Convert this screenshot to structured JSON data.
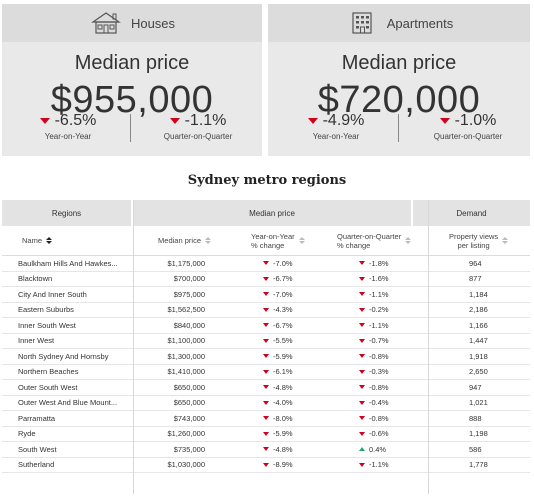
{
  "cards": [
    {
      "title": "Houses",
      "icon": "house-icon",
      "median_label": "Median price",
      "median_value": "$955,000",
      "yoy_value": "-6.5%",
      "yoy_label": "Year-on-Year",
      "qoq_value": "-1.1%",
      "qoq_label": "Quarter-on-Quarter"
    },
    {
      "title": "Apartments",
      "icon": "apartment-building-icon",
      "median_label": "Median price",
      "median_value": "$720,000",
      "yoy_value": "-4.9%",
      "yoy_label": "Year-on-Year",
      "qoq_value": "-1.0%",
      "qoq_label": "Quarter-on-Quarter"
    }
  ],
  "section_title": "Sydney metro regions",
  "table": {
    "groups": {
      "regions": "Regions",
      "median": "Median price",
      "demand": "Demand"
    },
    "headers": {
      "name": "Name",
      "price": "Median price",
      "yoy_line1": "Year-on-Year",
      "yoy_line2": "% change",
      "qoq_line1": "Quarter-on-Quarter",
      "qoq_line2": "% change",
      "demand_line1": "Property views",
      "demand_line2": "per listing"
    },
    "rows": [
      {
        "name": "Baulkham Hills And Hawkes...",
        "price": "$1,175,000",
        "yoy": "-7.0%",
        "qoq": "-1.8%",
        "qoq_dir": "down",
        "views": "964"
      },
      {
        "name": "Blacktown",
        "price": "$700,000",
        "yoy": "-6.7%",
        "qoq": "-1.6%",
        "qoq_dir": "down",
        "views": "877"
      },
      {
        "name": "City And Inner South",
        "price": "$975,000",
        "yoy": "-7.0%",
        "qoq": "-1.1%",
        "qoq_dir": "down",
        "views": "1,184"
      },
      {
        "name": "Eastern Suburbs",
        "price": "$1,562,500",
        "yoy": "-4.3%",
        "qoq": "-0.2%",
        "qoq_dir": "down",
        "views": "2,186"
      },
      {
        "name": "Inner South West",
        "price": "$840,000",
        "yoy": "-6.7%",
        "qoq": "-1.1%",
        "qoq_dir": "down",
        "views": "1,166"
      },
      {
        "name": "Inner West",
        "price": "$1,100,000",
        "yoy": "-5.5%",
        "qoq": "-0.7%",
        "qoq_dir": "down",
        "views": "1,447"
      },
      {
        "name": "North Sydney And Hornsby",
        "price": "$1,300,000",
        "yoy": "-5.9%",
        "qoq": "-0.8%",
        "qoq_dir": "down",
        "views": "1,918"
      },
      {
        "name": "Northern Beaches",
        "price": "$1,410,000",
        "yoy": "-6.1%",
        "qoq": "-0.3%",
        "qoq_dir": "down",
        "views": "2,650"
      },
      {
        "name": "Outer South West",
        "price": "$650,000",
        "yoy": "-4.8%",
        "qoq": "-0.8%",
        "qoq_dir": "down",
        "views": "947"
      },
      {
        "name": "Outer West And Blue Mount...",
        "price": "$650,000",
        "yoy": "-4.0%",
        "qoq": "-0.4%",
        "qoq_dir": "down",
        "views": "1,021"
      },
      {
        "name": "Parramatta",
        "price": "$743,000",
        "yoy": "-8.0%",
        "qoq": "-0.8%",
        "qoq_dir": "down",
        "views": "888"
      },
      {
        "name": "Ryde",
        "price": "$1,260,000",
        "yoy": "-5.9%",
        "qoq": "-0.6%",
        "qoq_dir": "down",
        "views": "1,198"
      },
      {
        "name": "South West",
        "price": "$735,000",
        "yoy": "-4.8%",
        "qoq": "0.4%",
        "qoq_dir": "up",
        "views": "586"
      },
      {
        "name": "Sutherland",
        "price": "$1,030,000",
        "yoy": "-8.9%",
        "qoq": "-1.1%",
        "qoq_dir": "down",
        "views": "1,778"
      }
    ]
  }
}
